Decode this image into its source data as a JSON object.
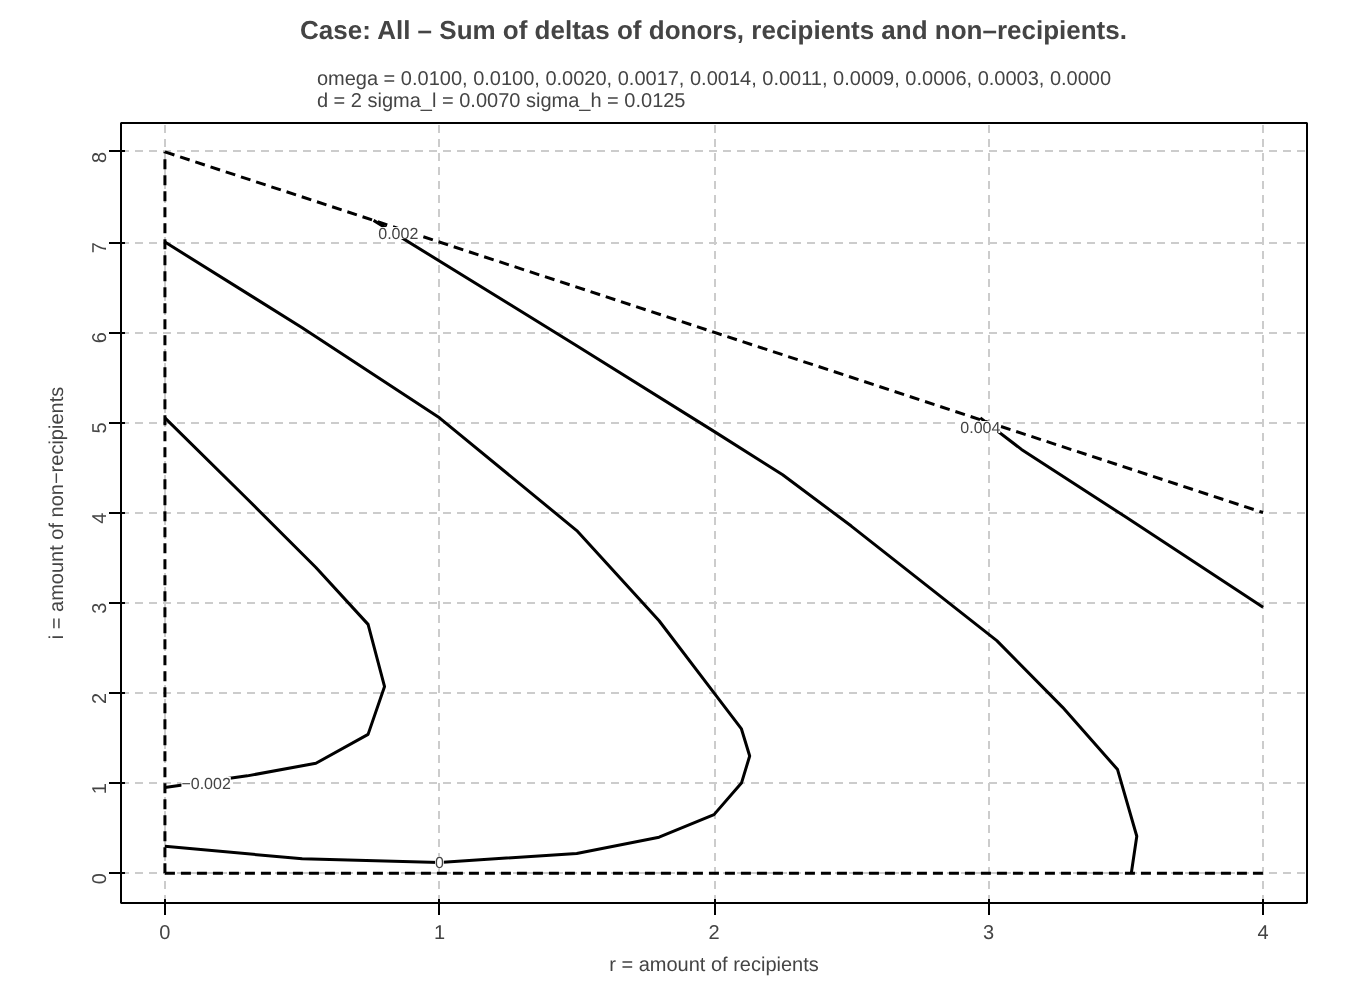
{
  "chart_data": {
    "type": "line",
    "title": "Case: All – Sum of deltas of donors, recipients and non–recipients.",
    "subtitle": "omega = 0.0100, 0.0100, 0.0020, 0.0017, 0.0014, 0.0011, 0.0009, 0.0006, 0.0003, 0.0000\nd = 2     sigma_l = 0.0070     sigma_h = 0.0125",
    "xlabel": "r = amount of recipients",
    "ylabel": "i = amount of non−recipients",
    "xlim": [
      -0.16,
      4.16
    ],
    "ylim": [
      -0.33,
      8.32
    ],
    "xticks": [
      0,
      1,
      2,
      3,
      4
    ],
    "yticks": [
      0,
      1,
      2,
      3,
      4,
      5,
      6,
      7,
      8
    ],
    "grid": true,
    "marker": "none",
    "series": [
      {
        "color": "#000000",
        "line_style": "dashed",
        "x": [
          0,
          0
        ],
        "values": [
          0,
          8
        ]
      },
      {
        "color": "#000000",
        "line_style": "dashed",
        "x": [
          0,
          4
        ],
        "values": [
          0,
          0
        ]
      },
      {
        "color": "#000000",
        "line_style": "dashed",
        "x": [
          0,
          4
        ],
        "values": [
          8,
          4
        ]
      },
      {
        "color": "#000000",
        "line_style": "solid",
        "x": [
          0,
          0.3,
          0.55,
          0.74,
          0.8,
          0.74,
          0.55,
          0.3,
          0
        ],
        "values": [
          5.05,
          4.15,
          3.39,
          2.76,
          2.07,
          1.54,
          1.22,
          1.08,
          0.95
        ]
      },
      {
        "color": "#000000",
        "line_style": "solid",
        "x": [
          0,
          0.5,
          1,
          1.5,
          1.8,
          2.0,
          2.1,
          2.13,
          2.1,
          2.0,
          1.8,
          1.5,
          1,
          0.5,
          0
        ],
        "values": [
          7,
          6.05,
          5.05,
          3.8,
          2.8,
          2.0,
          1.6,
          1.3,
          1.0,
          0.65,
          0.4,
          0.22,
          0.12,
          0.16,
          0.3
        ]
      },
      {
        "color": "#000000",
        "line_style": "solid",
        "x": [
          0.76,
          1.5,
          2.0,
          2.25,
          2.5,
          3.03,
          3.27,
          3.47,
          3.54,
          3.52
        ],
        "values": [
          7.24,
          5.85,
          4.9,
          4.42,
          3.85,
          2.58,
          1.84,
          1.15,
          0.41,
          0
        ]
      },
      {
        "color": "#000000",
        "line_style": "solid",
        "x": [
          2.97,
          3.12,
          3.5,
          4
        ],
        "values": [
          5.05,
          4.7,
          3.95,
          2.95
        ]
      }
    ],
    "annotations": [
      {
        "text": "−0.002",
        "x": 0.15,
        "y": 1.0
      },
      {
        "text": "0",
        "x": 1.0,
        "y": 0.12
      },
      {
        "text": "0.002",
        "x": 0.85,
        "y": 7.1
      },
      {
        "text": "0.004",
        "x": 2.97,
        "y": 4.95
      }
    ]
  }
}
